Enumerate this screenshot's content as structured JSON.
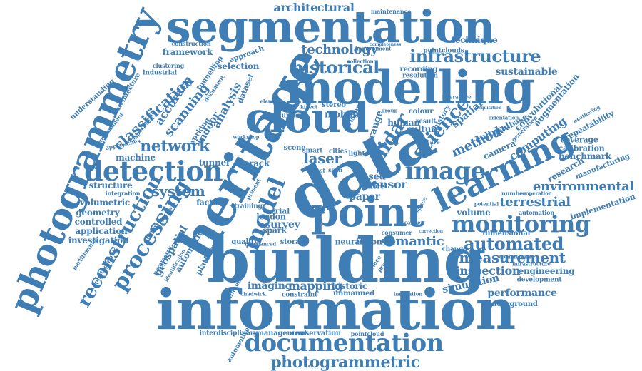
{
  "palette": {
    "word_color": "#3f7db5",
    "background": "#ffffff"
  },
  "words": [
    {
      "text": "information"
    },
    {
      "text": "building"
    },
    {
      "text": "segmentation"
    },
    {
      "text": "modelling"
    },
    {
      "text": "data"
    },
    {
      "text": "heritage"
    },
    {
      "text": "photogrammetry"
    },
    {
      "text": "cloud"
    },
    {
      "text": "point"
    },
    {
      "text": "learning"
    },
    {
      "text": "documentation"
    },
    {
      "text": "detection"
    },
    {
      "text": "image"
    },
    {
      "text": "monitoring"
    },
    {
      "text": "processing"
    },
    {
      "text": "reconstruction"
    },
    {
      "text": "photogrammetric"
    },
    {
      "text": "infrastructure"
    },
    {
      "text": "historical"
    },
    {
      "text": "automated"
    },
    {
      "text": "measurement"
    },
    {
      "text": "network"
    },
    {
      "text": "system"
    },
    {
      "text": "classification"
    },
    {
      "text": "terrestrial"
    },
    {
      "text": "environmental"
    },
    {
      "text": "model"
    },
    {
      "text": "science"
    },
    {
      "text": "lidar"
    },
    {
      "text": "technology"
    },
    {
      "text": "architectural"
    },
    {
      "text": "method"
    },
    {
      "text": "computing"
    },
    {
      "text": "scanning"
    },
    {
      "text": "accuracy"
    },
    {
      "text": "spatial"
    },
    {
      "text": "semantic"
    },
    {
      "text": "laser"
    },
    {
      "text": "sensor"
    },
    {
      "text": "inspection"
    },
    {
      "text": "performance"
    },
    {
      "text": "simulation"
    },
    {
      "text": "mapping"
    },
    {
      "text": "imaging"
    },
    {
      "text": "survey"
    },
    {
      "text": "analysis"
    },
    {
      "text": "structure"
    },
    {
      "text": "volumetric"
    },
    {
      "text": "geometry"
    },
    {
      "text": "controlled"
    },
    {
      "text": "application"
    },
    {
      "text": "investigation"
    },
    {
      "text": "sustainable"
    },
    {
      "text": "framework"
    },
    {
      "text": "selection"
    },
    {
      "text": "engineering"
    },
    {
      "text": "underground"
    },
    {
      "text": "conservation"
    },
    {
      "text": "management"
    },
    {
      "text": "interdisciplinary"
    },
    {
      "text": "automotive"
    },
    {
      "text": "historic"
    },
    {
      "text": "unmanned"
    },
    {
      "text": "geospatial"
    },
    {
      "text": "automatic"
    },
    {
      "text": "platform"
    },
    {
      "text": "computer"
    },
    {
      "text": "indoor"
    },
    {
      "text": "tunnel"
    },
    {
      "text": "machine"
    },
    {
      "text": "factory"
    },
    {
      "text": "crack"
    },
    {
      "text": "paper"
    },
    {
      "text": "culture"
    },
    {
      "text": "neural"
    },
    {
      "text": "fusion"
    },
    {
      "text": "london"
    },
    {
      "text": "spark"
    },
    {
      "text": "aerial"
    },
    {
      "text": "quality"
    },
    {
      "text": "storage"
    },
    {
      "text": "mobile"
    },
    {
      "text": "vision"
    },
    {
      "text": "range"
    },
    {
      "text": "human"
    },
    {
      "text": "cultural"
    },
    {
      "text": "camera"
    },
    {
      "text": "database"
    },
    {
      "text": "convolutional"
    },
    {
      "text": "augmentation"
    },
    {
      "text": "repeatability"
    },
    {
      "text": "coverage"
    },
    {
      "text": "calibration"
    },
    {
      "text": "benchmark"
    },
    {
      "text": "research"
    },
    {
      "text": "manufacturing"
    },
    {
      "text": "implementation"
    },
    {
      "text": "development"
    },
    {
      "text": "automation"
    },
    {
      "text": "dimensional"
    },
    {
      "text": "volume"
    },
    {
      "text": "consumer"
    },
    {
      "text": "constraint"
    },
    {
      "text": "different"
    },
    {
      "text": "chadwick"
    },
    {
      "text": "innovation"
    },
    {
      "text": "pointcloud"
    },
    {
      "text": "pointclouds"
    },
    {
      "text": "technique"
    },
    {
      "text": "maintenance"
    },
    {
      "text": "construction"
    },
    {
      "text": "industrial"
    },
    {
      "text": "architecture"
    },
    {
      "text": "understanding"
    },
    {
      "text": "environment"
    },
    {
      "text": "experiment"
    },
    {
      "text": "approach"
    },
    {
      "text": "clustering"
    },
    {
      "text": "tunnelling"
    },
    {
      "text": "working"
    },
    {
      "text": "integration"
    },
    {
      "text": "approaches"
    },
    {
      "text": "partitioning"
    },
    {
      "text": "photographic"
    },
    {
      "text": "parametric"
    },
    {
      "text": "dataset"
    },
    {
      "text": "document"
    },
    {
      "text": "urban"
    },
    {
      "text": "stereo"
    },
    {
      "text": "scene"
    },
    {
      "text": "light"
    },
    {
      "text": "smart"
    },
    {
      "text": "cost"
    },
    {
      "text": "more"
    },
    {
      "text": "based"
    },
    {
      "text": "scan"
    },
    {
      "text": "order"
    },
    {
      "text": "kinect"
    },
    {
      "text": "element"
    },
    {
      "text": "colour"
    },
    {
      "text": "history"
    },
    {
      "text": "result"
    },
    {
      "text": "group"
    },
    {
      "text": "recording"
    },
    {
      "text": "resolution"
    },
    {
      "text": "collection"
    },
    {
      "text": "improvement"
    },
    {
      "text": "completeness"
    },
    {
      "text": "scanner"
    },
    {
      "text": "number"
    },
    {
      "text": "cooperation"
    },
    {
      "text": "infrastructure"
    },
    {
      "text": "commercial"
    },
    {
      "text": "change"
    },
    {
      "text": "potential"
    },
    {
      "text": "project"
    },
    {
      "text": "preface"
    },
    {
      "text": "training"
    },
    {
      "text": "present"
    },
    {
      "text": "view"
    },
    {
      "text": "cities"
    },
    {
      "text": "form"
    },
    {
      "text": "generation"
    },
    {
      "text": "orientation"
    },
    {
      "text": "acquisition"
    },
    {
      "text": "imbalanced"
    },
    {
      "text": "software"
    },
    {
      "text": "space"
    },
    {
      "text": "interactive"
    },
    {
      "text": "workshop"
    },
    {
      "text": "identification"
    },
    {
      "text": "issue"
    },
    {
      "text": "correction"
    },
    {
      "text": "weathering"
    }
  ]
}
